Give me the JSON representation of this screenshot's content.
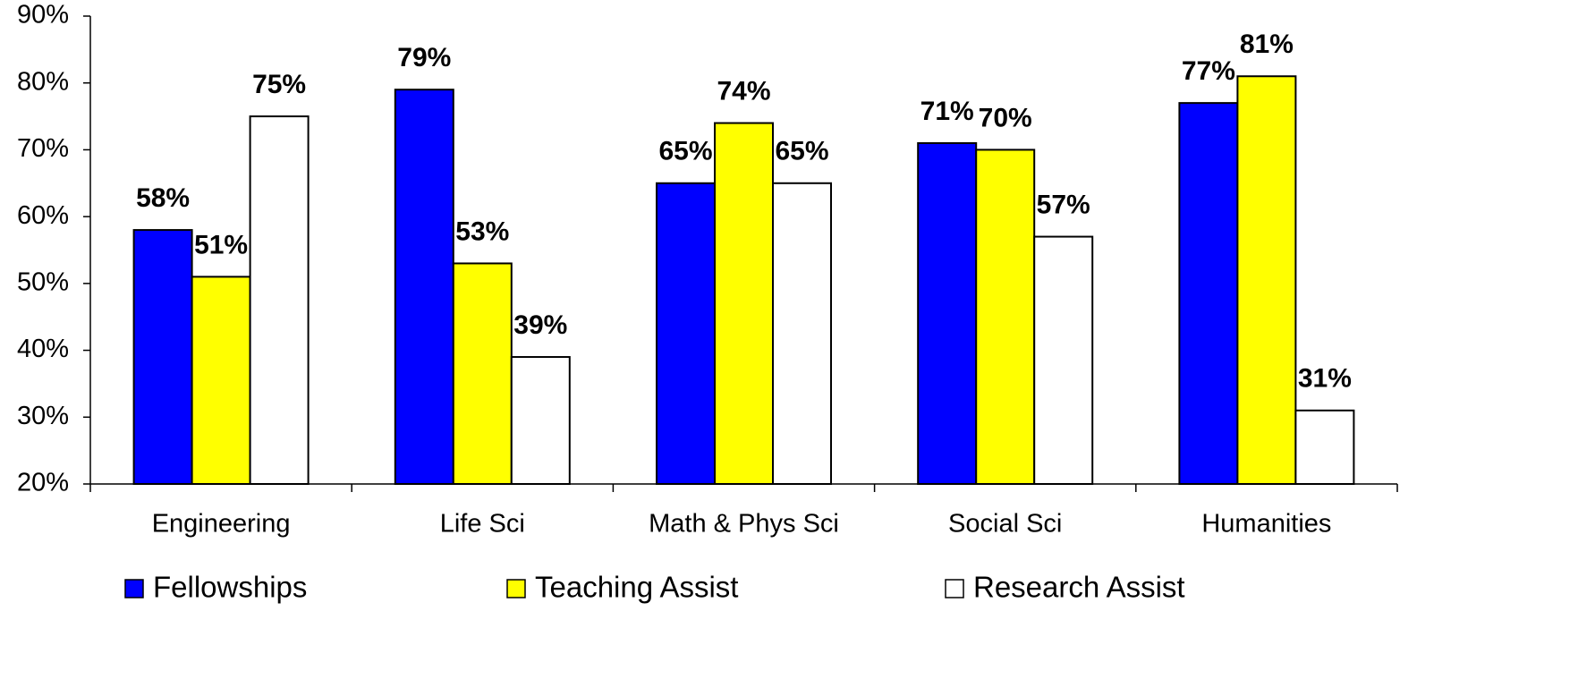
{
  "chart_data": {
    "type": "bar",
    "categories": [
      "Engineering",
      "Life Sci",
      "Math & Phys Sci",
      "Social Sci",
      "Humanities"
    ],
    "series": [
      {
        "name": "Fellowships",
        "color": "#0000ff",
        "values": [
          58,
          79,
          65,
          71,
          77
        ],
        "value_labels": [
          "58%",
          "79%",
          "65%",
          "71%",
          "77%"
        ]
      },
      {
        "name": "Teaching Assist",
        "color": "#ffff00",
        "values": [
          51,
          53,
          74,
          70,
          81
        ],
        "value_labels": [
          "51%",
          "53%",
          "74%",
          "70%",
          "81%"
        ]
      },
      {
        "name": "Research Assist",
        "color": "#ffffff",
        "values": [
          75,
          39,
          65,
          57,
          31
        ],
        "value_labels": [
          "75%",
          "39%",
          "65%",
          "57%",
          "31%"
        ]
      }
    ],
    "ylim": [
      20,
      90
    ],
    "yticks": [
      {
        "value": 20,
        "label": "20%"
      },
      {
        "value": 30,
        "label": "30%"
      },
      {
        "value": 40,
        "label": "40%"
      },
      {
        "value": 50,
        "label": "50%"
      },
      {
        "value": 60,
        "label": "60%"
      },
      {
        "value": 70,
        "label": "70%"
      },
      {
        "value": 80,
        "label": "80%"
      },
      {
        "value": 90,
        "label": "90%"
      }
    ],
    "grid": false,
    "legend": "bottom"
  }
}
